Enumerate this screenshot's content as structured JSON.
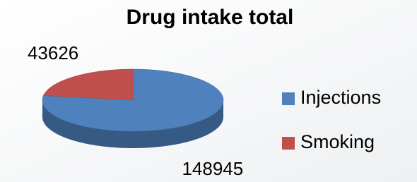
{
  "chart_data": {
    "type": "pie",
    "title": "Drug intake total",
    "categories": [
      "Injections",
      "Smoking"
    ],
    "values": [
      148945,
      43626
    ],
    "colors": [
      "#4f81bd",
      "#c0504d"
    ],
    "legend": "right"
  }
}
